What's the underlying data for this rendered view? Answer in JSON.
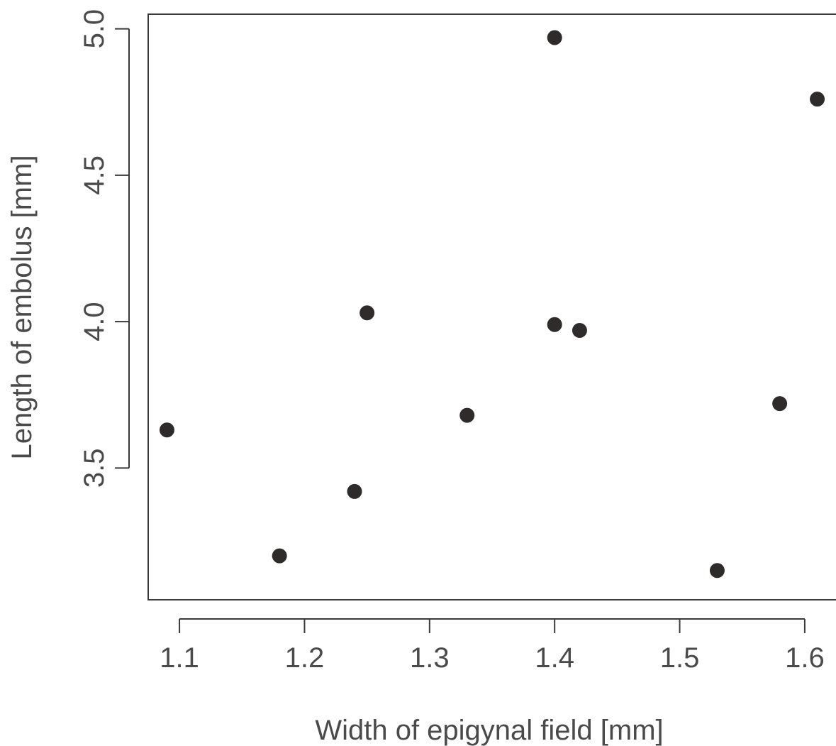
{
  "chart_data": {
    "type": "scatter",
    "title": "",
    "xlabel": "Width of epigynal field [mm]",
    "ylabel": "Length of embolus [mm]",
    "xlim": [
      1.075,
      1.625
    ],
    "ylim": [
      3.05,
      5.05
    ],
    "x_ticks": [
      1.1,
      1.2,
      1.3,
      1.4,
      1.5,
      1.6
    ],
    "x_tick_labels": [
      "1.1",
      "1.2",
      "1.3",
      "1.4",
      "1.5",
      "1.6"
    ],
    "y_ticks": [
      3.5,
      4.0,
      4.5,
      5.0
    ],
    "y_tick_labels": [
      "3.5",
      "4.0",
      "4.5",
      "5.0"
    ],
    "grid": false,
    "marker_color": "#2f2b2b",
    "points": [
      {
        "x": 1.09,
        "y": 3.63
      },
      {
        "x": 1.18,
        "y": 3.2
      },
      {
        "x": 1.24,
        "y": 3.42
      },
      {
        "x": 1.25,
        "y": 4.03
      },
      {
        "x": 1.33,
        "y": 3.68
      },
      {
        "x": 1.4,
        "y": 4.97
      },
      {
        "x": 1.4,
        "y": 3.99
      },
      {
        "x": 1.42,
        "y": 3.97
      },
      {
        "x": 1.53,
        "y": 3.15
      },
      {
        "x": 1.58,
        "y": 3.72
      },
      {
        "x": 1.61,
        "y": 4.76
      }
    ]
  }
}
